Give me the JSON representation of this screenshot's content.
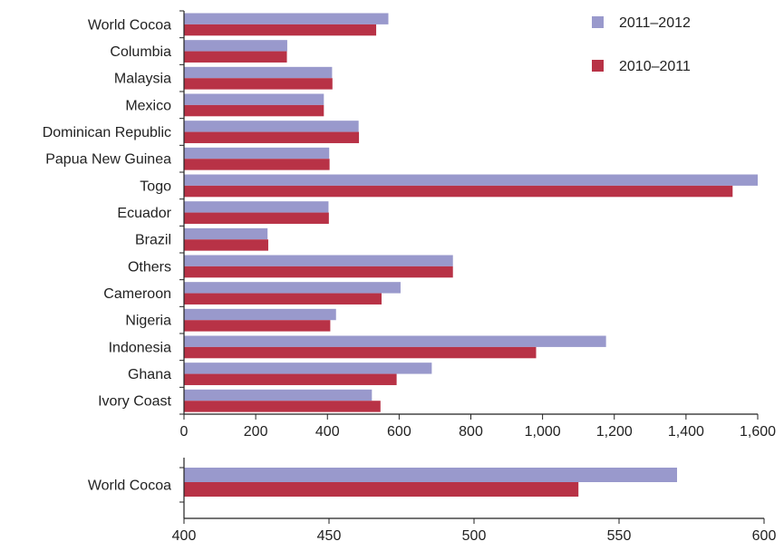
{
  "colors": {
    "series_2011_2012": "#9999cc",
    "series_2010_2011": "#b83246",
    "axis": "#222222"
  },
  "chart_data": [
    {
      "type": "bar",
      "orientation": "horizontal",
      "categories": [
        "World Cocoa",
        "Columbia",
        "Malaysia",
        "Mexico",
        "Dominican Republic",
        "Papua New Guinea",
        "Togo",
        "Ecuador",
        "Brazil",
        "Others",
        "Cameroon",
        "Nigeria",
        "Indonesia",
        "Ghana",
        "Ivory Coast"
      ],
      "series": [
        {
          "name": "2011–2012",
          "values": [
            570,
            288,
            413,
            390,
            487,
            405,
            1600,
            403,
            233,
            750,
            604,
            424,
            1177,
            691,
            524
          ]
        },
        {
          "name": "2010–2011",
          "values": [
            536,
            287,
            414,
            390,
            488,
            406,
            1530,
            404,
            235,
            750,
            551,
            408,
            982,
            593,
            548
          ]
        }
      ],
      "xlim": [
        0,
        1600
      ],
      "xticks": [
        0,
        200,
        400,
        600,
        800,
        1000,
        1200,
        1400,
        1600
      ],
      "xtick_labels": [
        "0",
        "200",
        "400",
        "600",
        "800",
        "1,000",
        "1,200",
        "1,400",
        "1,600"
      ],
      "legend": "top-right",
      "grid": false,
      "title": "",
      "xlabel": "",
      "ylabel": ""
    },
    {
      "type": "bar",
      "orientation": "horizontal",
      "categories": [
        "World Cocoa"
      ],
      "series": [
        {
          "name": "2011–2012",
          "values": [
            570
          ]
        },
        {
          "name": "2010–2011",
          "values": [
            536
          ]
        }
      ],
      "xlim": [
        400,
        600
      ],
      "xticks": [
        400,
        450,
        500,
        550,
        600
      ],
      "xtick_labels": [
        "400",
        "450",
        "500",
        "550",
        "600"
      ],
      "grid": false,
      "title": "",
      "xlabel": "",
      "ylabel": ""
    }
  ]
}
